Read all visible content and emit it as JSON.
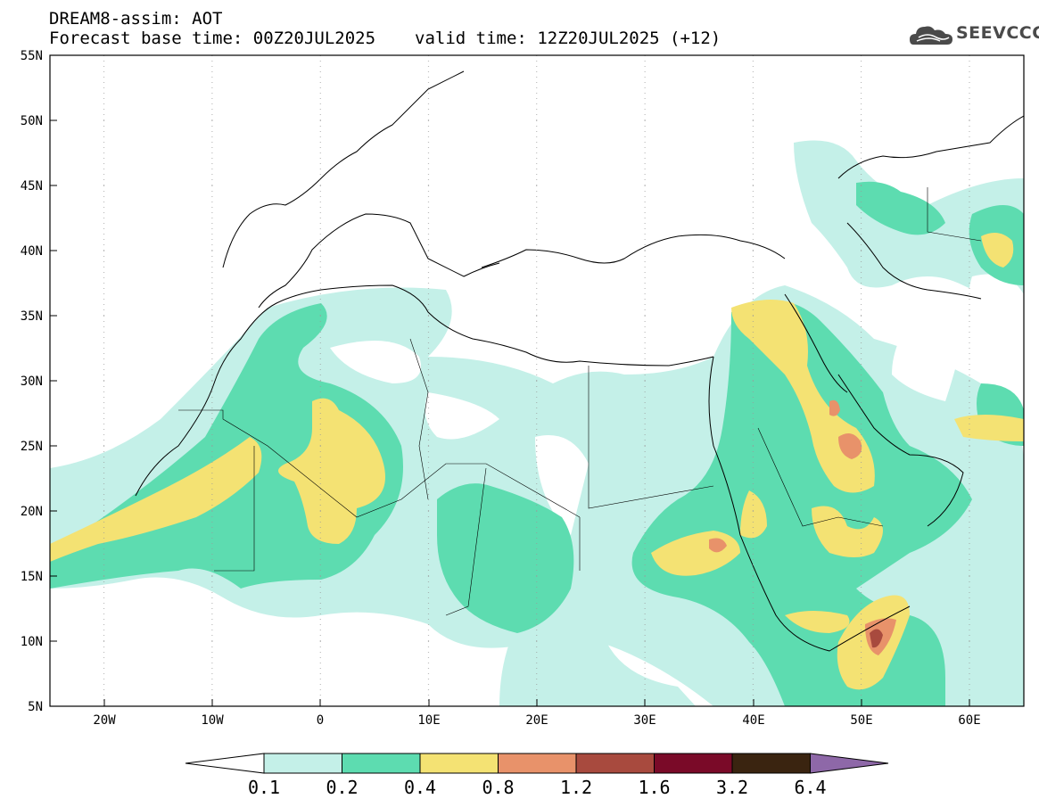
{
  "header": {
    "title_line1": "DREAM8-assim: AOT",
    "base_time": "Forecast base time: 00Z20JUL2025",
    "valid_time": "valid time: 12Z20JUL2025 (+12)"
  },
  "logo": {
    "text": "SEEVCCC"
  },
  "map": {
    "variable": "Aerosol Optical Thickness",
    "region": {
      "lon_min": -25,
      "lon_max": 65,
      "lat_min": 5,
      "lat_max": 55
    },
    "lat_labels": [
      "55N",
      "50N",
      "45N",
      "40N",
      "35N",
      "30N",
      "25N",
      "20N",
      "15N",
      "10N",
      "5N"
    ],
    "lon_labels": [
      "20W",
      "10W",
      "0",
      "10E",
      "20E",
      "30E",
      "40E",
      "50E",
      "60E"
    ]
  },
  "colorbar": {
    "labels": [
      "0.1",
      "0.2",
      "0.4",
      "0.8",
      "1.2",
      "1.6",
      "3.2",
      "6.4"
    ],
    "colors": [
      "#ffffff",
      "#c4f0e8",
      "#5ddcb0",
      "#f4e273",
      "#e8926a",
      "#a84a3e",
      "#7a0a28",
      "#3a2410",
      "#8e68a8"
    ]
  }
}
